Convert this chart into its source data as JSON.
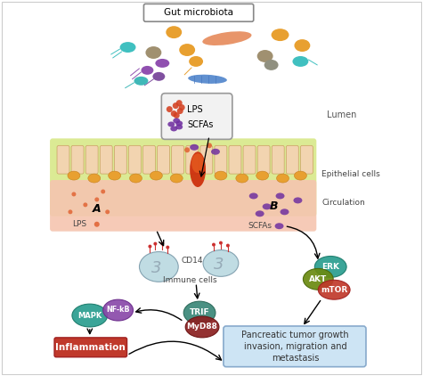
{
  "title": "Gut microbiota",
  "bg_color": "#ffffff",
  "lumen_label": "Lumen",
  "epithelial_label": "Epithelial cells",
  "circulation_label": "Circulation",
  "immune_label": "Immune cells",
  "cd14_label": "CD14",
  "lps_label": "LPS",
  "scfas_label": "SCFAs",
  "a_label": "A",
  "b_label": "B",
  "mapk_label": "MAPK",
  "nfkb_label": "NF-kB",
  "trif_label": "TRIF",
  "myd88_label": "MyD88",
  "erk_label": "ERK",
  "akt_label": "AKT",
  "mtor_label": "mTOR",
  "inflammation_label": "Inflammation",
  "pancreatic_label": "Pancreatic tumor growth\ninvasion, migration and\nmetastasis"
}
